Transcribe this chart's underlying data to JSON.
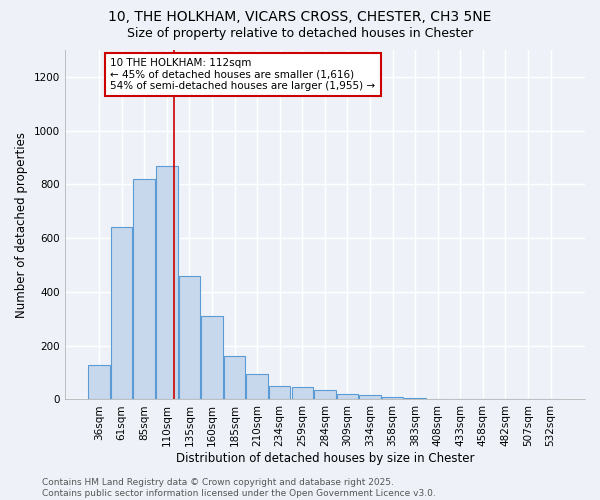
{
  "title1": "10, THE HOLKHAM, VICARS CROSS, CHESTER, CH3 5NE",
  "title2": "Size of property relative to detached houses in Chester",
  "xlabel": "Distribution of detached houses by size in Chester",
  "ylabel": "Number of detached properties",
  "categories": [
    "36sqm",
    "61sqm",
    "85sqm",
    "110sqm",
    "135sqm",
    "160sqm",
    "185sqm",
    "210sqm",
    "234sqm",
    "259sqm",
    "284sqm",
    "309sqm",
    "334sqm",
    "358sqm",
    "383sqm",
    "408sqm",
    "433sqm",
    "458sqm",
    "482sqm",
    "507sqm",
    "532sqm"
  ],
  "values": [
    130,
    640,
    820,
    870,
    460,
    310,
    160,
    95,
    50,
    45,
    35,
    20,
    15,
    10,
    5,
    3,
    2,
    2,
    1,
    1,
    1
  ],
  "bar_color": "#c8d8ec",
  "bar_edge_color": "#5b9bd5",
  "red_line_index": 3,
  "red_line_color": "#cc0000",
  "annotation_text": "10 THE HOLKHAM: 112sqm\n← 45% of detached houses are smaller (1,616)\n54% of semi-detached houses are larger (1,955) →",
  "annotation_box_color": "#ffffff",
  "annotation_box_edge": "#cc0000",
  "ylim": [
    0,
    1300
  ],
  "yticks": [
    0,
    200,
    400,
    600,
    800,
    1000,
    1200
  ],
  "background_color": "#eef2f8",
  "grid_color": "#ffffff",
  "footnote": "Contains HM Land Registry data © Crown copyright and database right 2025.\nContains public sector information licensed under the Open Government Licence v3.0.",
  "title_fontsize": 10,
  "subtitle_fontsize": 9,
  "axis_label_fontsize": 8.5,
  "tick_fontsize": 7.5,
  "annotation_fontsize": 7.5,
  "footnote_fontsize": 6.5
}
